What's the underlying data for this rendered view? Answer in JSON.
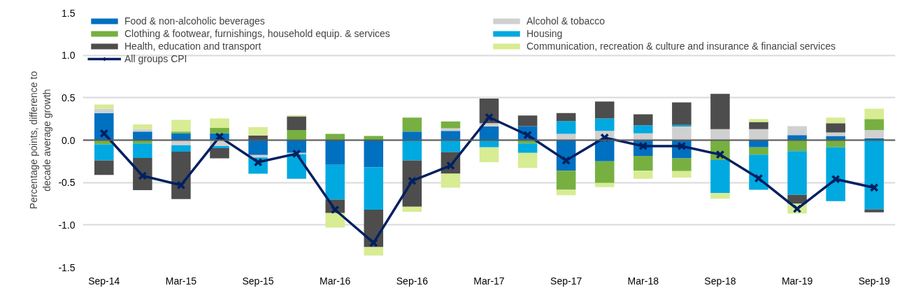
{
  "chart_data": {
    "type": "bar",
    "stacked": true,
    "ylabel": "Percentage points, difference to\ndecade average growth",
    "categories": [
      "Sep-14",
      null,
      "Mar-15",
      null,
      "Sep-15",
      null,
      "Mar-16",
      null,
      "Sep-16",
      null,
      "Mar-17",
      null,
      "Sep-17",
      null,
      "Mar-18",
      null,
      "Sep-18",
      null,
      "Mar-19",
      null,
      "Sep-19"
    ],
    "ylim": [
      -1.5,
      1.5
    ],
    "yticks": [
      {
        "value": -1.5,
        "label": "-1.5"
      },
      {
        "value": -1,
        "label": "-1.0"
      },
      {
        "value": -0.5,
        "label": "-0.5"
      },
      {
        "value": 0,
        "label": "0.0"
      },
      {
        "value": 0.5,
        "label": "0.5"
      },
      {
        "value": 1,
        "label": "1.0"
      },
      {
        "value": 1.5,
        "label": "1.5"
      }
    ],
    "grid": "y",
    "legend": "top",
    "series": [
      {
        "name": "Food & non-alcoholic beverages",
        "color": "#0070c0",
        "values": [
          0.32,
          0.1,
          0.08,
          0.08,
          -0.175,
          -0.15,
          -0.29,
          -0.32,
          0.1,
          0.11,
          0.16,
          0.165,
          -0.36,
          -0.25,
          -0.185,
          -0.215,
          null,
          -0.085,
          0.06,
          0.05,
          0.02
        ]
      },
      {
        "name": "Alcohol & tobacco",
        "color": "#d0d0d0",
        "values": [
          0.05,
          0.03,
          -0.06,
          -0.07,
          -0.03,
          -0.015,
          null,
          null,
          null,
          0.03,
          0.04,
          null,
          0.075,
          0.11,
          0.08,
          0.16,
          0.13,
          0.13,
          0.105,
          0.04,
          0.1
        ]
      },
      {
        "name": "Clothing & footwear, furnishings, household equip. & services",
        "color": "#77b041",
        "values": [
          -0.05,
          -0.04,
          0.02,
          0.065,
          null,
          0.12,
          0.075,
          0.05,
          0.165,
          0.08,
          null,
          -0.04,
          -0.225,
          -0.255,
          -0.175,
          -0.15,
          -0.235,
          -0.085,
          -0.13,
          -0.085,
          0.13
        ]
      },
      {
        "name": "Housing",
        "color": "#00a9e0",
        "values": [
          -0.19,
          -0.17,
          -0.075,
          -0.025,
          -0.19,
          -0.29,
          -0.41,
          -0.5,
          -0.24,
          -0.14,
          -0.085,
          -0.11,
          0.15,
          0.145,
          0.095,
          0.02,
          -0.39,
          -0.415,
          -0.515,
          -0.635,
          -0.815
        ]
      },
      {
        "name": "Health, education and transport",
        "color": "#4d4d4d",
        "values": [
          -0.17,
          -0.38,
          -0.56,
          -0.12,
          0.055,
          0.16,
          -0.16,
          -0.44,
          -0.545,
          -0.255,
          0.29,
          0.125,
          0.095,
          0.2,
          0.13,
          0.265,
          0.415,
          0.085,
          -0.105,
          0.11,
          -0.035
        ]
      },
      {
        "name": "Communication, recreation & culture and insurance & financial services",
        "color": "#d7ec93",
        "values": [
          0.05,
          0.055,
          0.14,
          0.11,
          0.1,
          0.015,
          -0.17,
          -0.1,
          -0.06,
          -0.165,
          -0.175,
          -0.175,
          -0.065,
          -0.05,
          -0.095,
          -0.075,
          -0.065,
          0.035,
          -0.115,
          0.065,
          0.12
        ]
      },
      {
        "name": "All groups CPI",
        "type": "line",
        "color": "#002060",
        "marker": "cross",
        "values": [
          0.08,
          -0.42,
          -0.53,
          0.04,
          -0.26,
          -0.16,
          -0.82,
          -1.21,
          -0.48,
          -0.3,
          0.27,
          0.06,
          -0.24,
          0.03,
          -0.07,
          -0.07,
          -0.17,
          -0.45,
          -0.81,
          -0.46,
          -0.56
        ]
      }
    ]
  }
}
